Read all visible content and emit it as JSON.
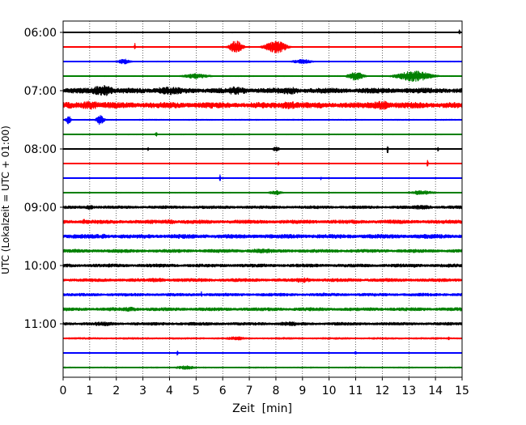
{
  "chart_data": {
    "type": "line",
    "title": "",
    "xlabel": "Zeit  [min]",
    "ylabel": "UTC (Lokalzeit = UTC + 01:00)",
    "xlim": [
      0,
      15
    ],
    "x_ticks": [
      0,
      1,
      2,
      3,
      4,
      5,
      6,
      7,
      8,
      9,
      10,
      11,
      12,
      13,
      14,
      15
    ],
    "y_tick_labels": [
      "06:00",
      "07:00",
      "08:00",
      "09:00",
      "10:00",
      "11:00"
    ],
    "y_tick_rows": [
      0,
      4,
      8,
      12,
      16,
      20
    ],
    "grid": "vertical dotted",
    "row_minutes": 15,
    "color_cycle": [
      "#000000",
      "#ff0000",
      "#0000ff",
      "#008000"
    ],
    "rows": [
      {
        "start": "06:00",
        "color": "#000000",
        "amplitude": 0.06,
        "events": [
          {
            "x": 14.9,
            "amp": 0.5,
            "width": 0.05
          }
        ]
      },
      {
        "start": "06:15",
        "color": "#ff0000",
        "amplitude": 0.05,
        "events": [
          {
            "x": 2.7,
            "amp": 0.55,
            "width": 0.05
          },
          {
            "x": 6.5,
            "amp": 0.9,
            "width": 0.5
          },
          {
            "x": 8.0,
            "amp": 0.9,
            "width": 0.8
          }
        ]
      },
      {
        "start": "06:30",
        "color": "#0000ff",
        "amplitude": 0.06,
        "events": [
          {
            "x": 2.3,
            "amp": 0.35,
            "width": 0.5
          },
          {
            "x": 9.0,
            "amp": 0.3,
            "width": 0.8
          }
        ]
      },
      {
        "start": "06:45",
        "color": "#008000",
        "amplitude": 0.07,
        "events": [
          {
            "x": 5.0,
            "amp": 0.35,
            "width": 1.0
          },
          {
            "x": 11.0,
            "amp": 0.6,
            "width": 0.6
          },
          {
            "x": 13.2,
            "amp": 0.75,
            "width": 1.3
          }
        ]
      },
      {
        "start": "07:00",
        "color": "#000000",
        "amplitude": 0.35,
        "events": [
          {
            "x": 1.5,
            "amp": 0.75,
            "width": 1.0
          },
          {
            "x": 4.0,
            "amp": 0.55,
            "width": 1.5
          },
          {
            "x": 6.5,
            "amp": 0.55,
            "width": 1.0
          },
          {
            "x": 8.5,
            "amp": 0.5,
            "width": 1.0
          }
        ]
      },
      {
        "start": "07:15",
        "color": "#ff0000",
        "amplitude": 0.4,
        "events": [
          {
            "x": 1.0,
            "amp": 0.6,
            "width": 1.0
          },
          {
            "x": 8.5,
            "amp": 0.5,
            "width": 1.2
          },
          {
            "x": 12.0,
            "amp": 0.6,
            "width": 1.0
          }
        ]
      },
      {
        "start": "07:30",
        "color": "#0000ff",
        "amplitude": 0.08,
        "events": [
          {
            "x": 0.2,
            "amp": 0.6,
            "width": 0.2
          },
          {
            "x": 1.4,
            "amp": 0.7,
            "width": 0.3
          }
        ]
      },
      {
        "start": "07:45",
        "color": "#008000",
        "amplitude": 0.06,
        "events": [
          {
            "x": 3.5,
            "amp": 0.3,
            "width": 0.1
          }
        ]
      },
      {
        "start": "08:00",
        "color": "#000000",
        "amplitude": 0.06,
        "events": [
          {
            "x": 3.2,
            "amp": 0.3,
            "width": 0.05
          },
          {
            "x": 8.0,
            "amp": 0.3,
            "width": 0.3
          },
          {
            "x": 12.2,
            "amp": 0.8,
            "width": 0.05
          },
          {
            "x": 14.1,
            "amp": 0.4,
            "width": 0.05
          }
        ]
      },
      {
        "start": "08:15",
        "color": "#ff0000",
        "amplitude": 0.05,
        "events": [
          {
            "x": 8.1,
            "amp": 0.4,
            "width": 0.05
          },
          {
            "x": 13.7,
            "amp": 0.6,
            "width": 0.05
          }
        ]
      },
      {
        "start": "08:30",
        "color": "#0000ff",
        "amplitude": 0.06,
        "events": [
          {
            "x": 5.9,
            "amp": 0.8,
            "width": 0.05
          },
          {
            "x": 9.7,
            "amp": 0.3,
            "width": 0.05
          }
        ]
      },
      {
        "start": "08:45",
        "color": "#008000",
        "amplitude": 0.06,
        "events": [
          {
            "x": 8.0,
            "amp": 0.3,
            "width": 0.5
          },
          {
            "x": 13.5,
            "amp": 0.3,
            "width": 1.0
          }
        ]
      },
      {
        "start": "09:00",
        "color": "#000000",
        "amplitude": 0.2,
        "events": [
          {
            "x": 1.0,
            "amp": 0.3,
            "width": 0.5
          },
          {
            "x": 13.5,
            "amp": 0.3,
            "width": 1.0
          }
        ]
      },
      {
        "start": "09:15",
        "color": "#ff0000",
        "amplitude": 0.25,
        "events": [
          {
            "x": 0.8,
            "amp": 0.35,
            "width": 0.5
          },
          {
            "x": 4.0,
            "amp": 0.3,
            "width": 0.8
          }
        ]
      },
      {
        "start": "09:30",
        "color": "#0000ff",
        "amplitude": 0.28,
        "events": [
          {
            "x": 1.5,
            "amp": 0.35,
            "width": 0.3
          },
          {
            "x": 8.5,
            "amp": 0.3,
            "width": 0.8
          }
        ]
      },
      {
        "start": "09:45",
        "color": "#008000",
        "amplitude": 0.22,
        "events": [
          {
            "x": 7.5,
            "amp": 0.3,
            "width": 1.5
          }
        ]
      },
      {
        "start": "10:00",
        "color": "#000000",
        "amplitude": 0.22,
        "events": [
          {
            "x": 3.3,
            "amp": 0.4,
            "width": 0.05
          },
          {
            "x": 13.2,
            "amp": 0.4,
            "width": 0.05
          },
          {
            "x": 14.5,
            "amp": 0.5,
            "width": 0.05
          }
        ]
      },
      {
        "start": "10:15",
        "color": "#ff0000",
        "amplitude": 0.22,
        "events": [
          {
            "x": 3.5,
            "amp": 0.3,
            "width": 0.8
          },
          {
            "x": 9.0,
            "amp": 0.35,
            "width": 0.8
          }
        ]
      },
      {
        "start": "10:30",
        "color": "#0000ff",
        "amplitude": 0.2,
        "events": [
          {
            "x": 5.2,
            "amp": 0.45,
            "width": 0.05
          },
          {
            "x": 9.8,
            "amp": 0.35,
            "width": 0.05
          }
        ]
      },
      {
        "start": "10:45",
        "color": "#008000",
        "amplitude": 0.22,
        "events": [
          {
            "x": 2.5,
            "amp": 0.3,
            "width": 0.8
          }
        ]
      },
      {
        "start": "11:00",
        "color": "#000000",
        "amplitude": 0.2,
        "events": [
          {
            "x": 1.5,
            "amp": 0.3,
            "width": 1.0
          },
          {
            "x": 8.5,
            "amp": 0.3,
            "width": 1.0
          }
        ]
      },
      {
        "start": "11:15",
        "color": "#ff0000",
        "amplitude": 0.12,
        "events": [
          {
            "x": 6.5,
            "amp": 0.25,
            "width": 0.8
          },
          {
            "x": 14.5,
            "amp": 0.35,
            "width": 0.05
          }
        ]
      },
      {
        "start": "11:30",
        "color": "#0000ff",
        "amplitude": 0.06,
        "events": [
          {
            "x": 4.3,
            "amp": 0.5,
            "width": 0.05
          },
          {
            "x": 11.0,
            "amp": 0.45,
            "width": 0.05
          }
        ]
      },
      {
        "start": "11:45",
        "color": "#008000",
        "amplitude": 0.08,
        "events": [
          {
            "x": 4.6,
            "amp": 0.25,
            "width": 0.8
          }
        ]
      }
    ]
  }
}
